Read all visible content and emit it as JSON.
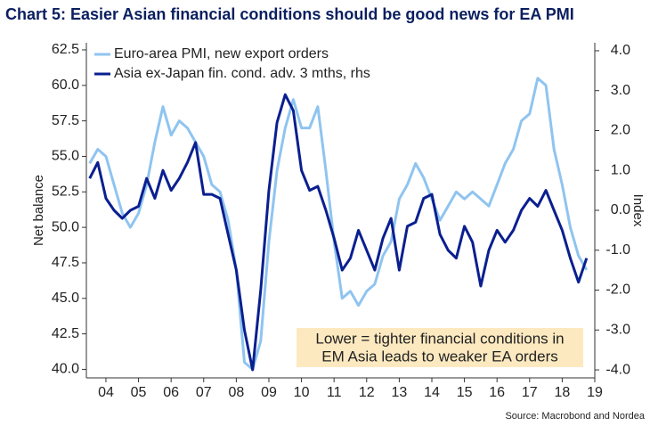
{
  "chart_data": {
    "type": "line",
    "title": "Chart 5: Easier Asian financial conditions should be good news for EA PMI",
    "ylabel": "Net balance",
    "y2label": "Index",
    "source": "Source: Macrobond and Nordea",
    "annotation": [
      "Lower = tighter financial conditions in",
      "EM Asia leads to weaker EA orders"
    ],
    "x": [
      2004,
      2004.25,
      2004.5,
      2004.75,
      2005,
      2005.25,
      2005.5,
      2005.75,
      2006,
      2006.25,
      2006.5,
      2006.75,
      2007,
      2007.25,
      2007.5,
      2007.75,
      2008,
      2008.25,
      2008.5,
      2008.75,
      2009,
      2009.25,
      2009.5,
      2009.75,
      2010,
      2010.25,
      2010.5,
      2010.75,
      2011,
      2011.25,
      2011.5,
      2011.75,
      2012,
      2012.25,
      2012.5,
      2012.75,
      2013,
      2013.25,
      2013.5,
      2013.75,
      2014,
      2014.25,
      2014.5,
      2014.75,
      2015,
      2015.25,
      2015.5,
      2015.75,
      2016,
      2016.25,
      2016.5,
      2016.75,
      2017,
      2017.25,
      2017.5,
      2017.75,
      2018,
      2018.25,
      2018.5,
      2018.75,
      2019,
      2019.25
    ],
    "series": [
      {
        "name": "Euro-area PMI, new export orders",
        "color": "#8fc4f0",
        "axis": "y",
        "values": [
          54.5,
          55.5,
          55.0,
          53,
          51,
          50,
          51,
          53,
          56,
          58.5,
          56.5,
          57.5,
          57,
          56,
          55,
          53,
          52.5,
          50.5,
          47,
          40.5,
          40,
          42,
          49,
          54,
          57,
          59,
          57,
          57,
          58.5,
          54,
          49,
          45,
          45.5,
          44.5,
          45.5,
          46,
          48,
          49,
          52,
          53,
          54.5,
          53.5,
          52,
          50.5,
          51.5,
          52.5,
          52,
          52.5,
          52,
          51.5,
          53,
          54.5,
          55.5,
          57.5,
          58,
          60.5,
          60,
          55.5,
          53,
          50,
          48,
          47
        ]
      },
      {
        "name": "Asia ex-Japan fin. cond. adv. 3 mths, rhs",
        "color": "#0a1f8f",
        "axis": "y2",
        "values": [
          0.8,
          1.2,
          0.3,
          0.0,
          -0.2,
          0.0,
          0.1,
          0.8,
          0.3,
          1.0,
          0.5,
          0.8,
          1.2,
          1.7,
          0.4,
          0.4,
          0.3,
          -0.6,
          -1.5,
          -3.0,
          -4.0,
          -2.0,
          0.5,
          2.2,
          2.9,
          2.5,
          1.0,
          0.5,
          0.6,
          0.0,
          -0.7,
          -1.5,
          -1.2,
          -0.5,
          -1.0,
          -1.5,
          -0.7,
          -0.2,
          -1.5,
          -0.4,
          -0.3,
          0.3,
          0.4,
          -0.6,
          -1.0,
          -1.2,
          -0.4,
          -0.8,
          -1.9,
          -1.0,
          -0.5,
          -0.8,
          -0.5,
          0.0,
          0.3,
          0.1,
          0.5,
          0.0,
          -0.5,
          -1.2,
          -1.8,
          -1.2
        ]
      }
    ],
    "xlim": [
      2003.9,
      2019.5
    ],
    "xticks": [
      {
        "value": 2004.5,
        "label": "04"
      },
      {
        "value": 2005.5,
        "label": "05"
      },
      {
        "value": 2006.5,
        "label": "06"
      },
      {
        "value": 2007.5,
        "label": "07"
      },
      {
        "value": 2008.5,
        "label": "08"
      },
      {
        "value": 2009.5,
        "label": "09"
      },
      {
        "value": 2010.5,
        "label": "10"
      },
      {
        "value": 2011.5,
        "label": "11"
      },
      {
        "value": 2012.5,
        "label": "12"
      },
      {
        "value": 2013.5,
        "label": "13"
      },
      {
        "value": 2014.5,
        "label": "14"
      },
      {
        "value": 2015.5,
        "label": "15"
      },
      {
        "value": 2016.5,
        "label": "16"
      },
      {
        "value": 2017.5,
        "label": "17"
      },
      {
        "value": 2018.5,
        "label": "18"
      },
      {
        "value": 2019.5,
        "label": "19"
      }
    ],
    "ylim": [
      39.4,
      63.0
    ],
    "yticks": [
      {
        "value": 40,
        "label": "40.0"
      },
      42.5,
      {
        "value": 45,
        "label": "45.0"
      },
      47.5,
      {
        "value": 50,
        "label": "50.0"
      },
      52.5,
      {
        "value": 55,
        "label": "55.0"
      },
      57.5,
      {
        "value": 60,
        "label": "60.0"
      },
      62.5
    ],
    "y2lim": [
      -4.2,
      4.2
    ],
    "y2ticks": [
      {
        "value": -4,
        "label": "-4.0"
      },
      {
        "value": -3,
        "label": "-3.0"
      },
      {
        "value": -2,
        "label": "-2.0"
      },
      {
        "value": -1,
        "label": "-1.0"
      },
      {
        "value": 0,
        "label": "0.0"
      },
      {
        "value": 1,
        "label": "1.0"
      },
      {
        "value": 2,
        "label": "2.0"
      },
      {
        "value": 3,
        "label": "3.0"
      },
      {
        "value": 4,
        "label": "4.0"
      }
    ],
    "legend": "upper left",
    "grid": false
  }
}
